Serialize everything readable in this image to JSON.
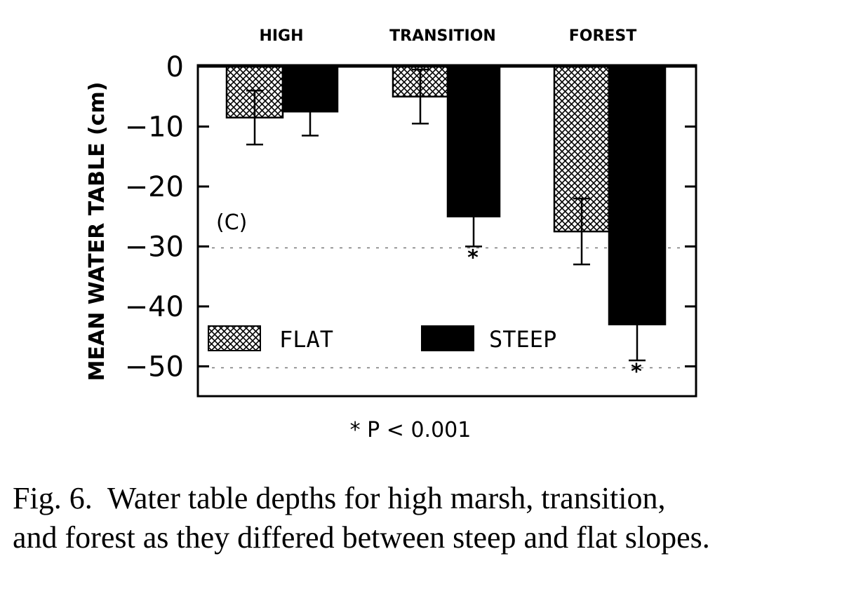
{
  "chart_data": {
    "type": "bar",
    "categories": [
      "HIGH",
      "TRANSITION",
      "FOREST"
    ],
    "series": [
      {
        "name": "FLAT",
        "values": [
          -8.5,
          -5,
          -27.5
        ],
        "errors": [
          4.5,
          4.5,
          5.5
        ],
        "pattern": "crosshatch"
      },
      {
        "name": "STEEP",
        "values": [
          -7.5,
          -25,
          -43
        ],
        "errors": [
          4,
          5,
          6
        ],
        "pattern": "solid"
      }
    ],
    "significant": [
      [
        false,
        false,
        false
      ],
      [
        false,
        true,
        true
      ]
    ],
    "ylabel": "MEAN WATER TABLE (cm)",
    "ylim": [
      -55,
      0
    ],
    "yticks": [
      0,
      -10,
      -20,
      -30,
      -40,
      -50
    ],
    "ytick_labels": [
      "0",
      "−10",
      "−20",
      "−30",
      "−40",
      "−50"
    ],
    "panel_label": "(C)",
    "legend_position": "bottom-left",
    "significance_mark": "*",
    "footnote": "* P < 0.001",
    "colors": {
      "bar": "#000000",
      "background": "#ffffff"
    }
  },
  "caption": {
    "line1": "Fig. 6.  Water table depths for high marsh, transition,",
    "line2": "and forest as they differed between steep and flat slopes."
  }
}
